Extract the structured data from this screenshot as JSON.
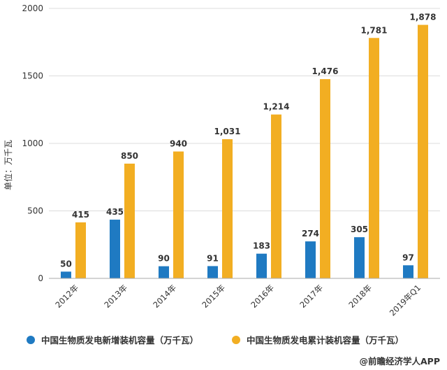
{
  "chart_data": {
    "type": "bar",
    "categories": [
      "2012年",
      "2013年",
      "2014年",
      "2015年",
      "2016年",
      "2017年",
      "2018年",
      "2019年Q1"
    ],
    "series": [
      {
        "name": "中国生物质发电新增装机容量（万千瓦）",
        "values": [
          50,
          435,
          90,
          91,
          183,
          274,
          305,
          97
        ],
        "color": "#1f7ac2"
      },
      {
        "name": "中国生物质发电累计装机容量（万千瓦）",
        "values": [
          415,
          850,
          940,
          1031,
          1214,
          1476,
          1781,
          1878
        ],
        "color": "#f2ae22"
      }
    ],
    "data_labels": [
      [
        "50",
        "435",
        "90",
        "91",
        "183",
        "274",
        "305",
        "97"
      ],
      [
        "415",
        "850",
        "940",
        "1,031",
        "1,214",
        "1,476",
        "1,781",
        "1,878"
      ]
    ],
    "ylabel": "单位：万千瓦",
    "ylim": [
      0,
      2000
    ],
    "yticks": [
      0,
      500,
      1000,
      1500,
      2000
    ],
    "grid": true,
    "legend_position": "bottom"
  },
  "source": "@前瞻经济学人APP"
}
